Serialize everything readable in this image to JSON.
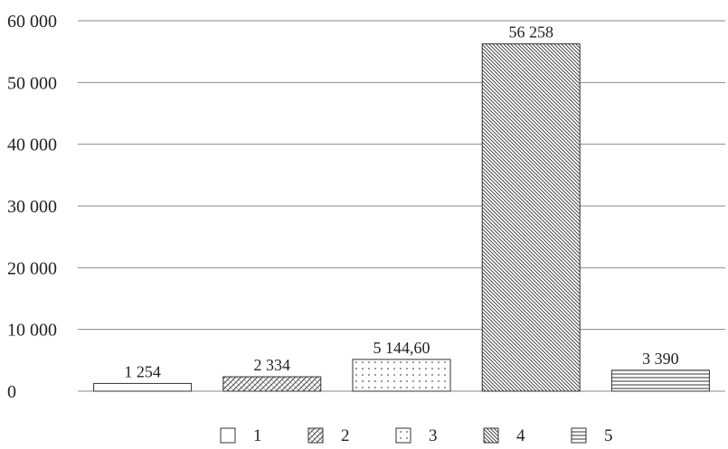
{
  "chart_data": {
    "type": "bar",
    "categories": [
      "1",
      "2",
      "3",
      "4",
      "5"
    ],
    "values": [
      1254,
      2334,
      5144.6,
      56258,
      3390
    ],
    "value_labels": [
      "1 254",
      "2 334",
      "5 144,60",
      "56 258",
      "3 390"
    ],
    "ylim": [
      0,
      60000
    ],
    "yticks": [
      0,
      10000,
      20000,
      30000,
      40000,
      50000,
      60000
    ],
    "ytick_labels": [
      "0",
      "10 000",
      "20 000",
      "30 000",
      "40 000",
      "50 000",
      "60 000"
    ],
    "grid": true,
    "legend_position": "bottom",
    "fills": [
      "none",
      "hatch-diagonal-cross",
      "dots",
      "hatch-diagonal-dense",
      "horizontal-lines"
    ],
    "colors": {
      "stroke": "#333333",
      "grid": "#888888",
      "text": "#222222",
      "background": "#ffffff"
    }
  }
}
